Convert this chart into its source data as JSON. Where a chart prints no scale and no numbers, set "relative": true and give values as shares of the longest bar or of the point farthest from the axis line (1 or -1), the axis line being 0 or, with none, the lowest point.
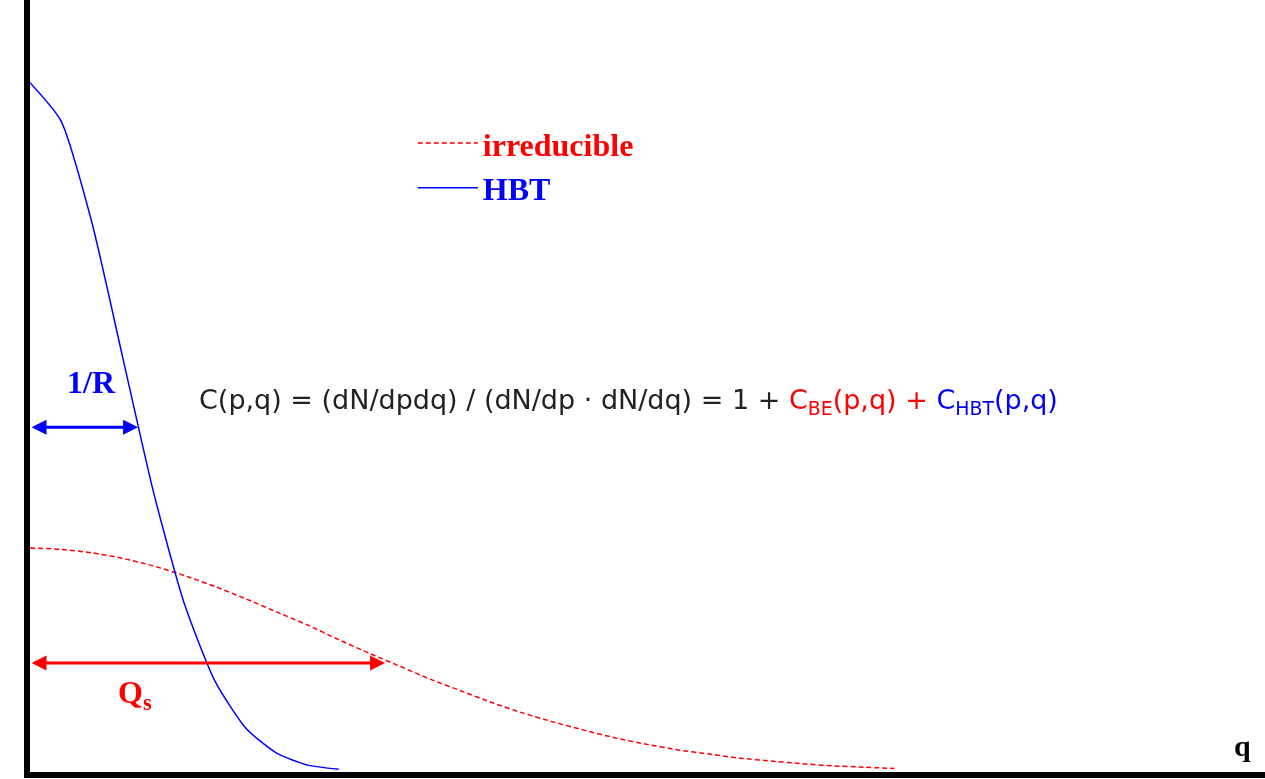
{
  "chart_data": {
    "type": "line",
    "relative": true,
    "xlabel": "q",
    "grid": false,
    "legend": "top",
    "marker": "none",
    "categories": [
      null,
      null,
      null,
      null,
      null,
      null,
      null,
      null,
      null,
      null,
      null,
      null,
      null,
      null,
      null,
      null,
      null,
      null,
      null,
      null,
      null,
      null,
      null,
      null,
      null,
      null,
      null,
      null,
      null,
      null,
      null,
      null,
      null,
      null,
      null,
      null,
      null,
      null,
      null,
      null,
      null
    ],
    "series": [
      {
        "name": "irreducible",
        "color": "#ff0000",
        "line_style": "dashed",
        "values": [
          0.325,
          0.323,
          0.318,
          0.31,
          0.299,
          0.285,
          0.269,
          0.251,
          0.232,
          0.213,
          0.192,
          0.172,
          0.153,
          0.134,
          0.117,
          0.1,
          0.085,
          0.072,
          0.06,
          0.049,
          0.04,
          0.032,
          0.026,
          0.02,
          0.016,
          0.012,
          0.009,
          0.007,
          0.005,
          null,
          null,
          null,
          null,
          null,
          null,
          null,
          null,
          null,
          null,
          null,
          null
        ]
      },
      {
        "name": "HBT",
        "color": "#0000ff",
        "line_style": "solid",
        "values": [
          1,
          0.945,
          0.798,
          0.602,
          0.406,
          0.244,
          0.131,
          0.063,
          0.027,
          0.01,
          0.004,
          null,
          null,
          null,
          null,
          null,
          null,
          null,
          null,
          null,
          null,
          null,
          null,
          null,
          null,
          null,
          null,
          null,
          null,
          null,
          null,
          null,
          null,
          null,
          null,
          null,
          null,
          null,
          null,
          null,
          null
        ]
      }
    ],
    "annotations": [
      "C(p,q) = (dN/dpdq) / (dN/dp · dN/dq) = 1 +",
      "C$_{BE}$(p,q) +",
      "C$_{HBT}$(p,q)",
      "1/R",
      "Q$_{s}$"
    ]
  }
}
